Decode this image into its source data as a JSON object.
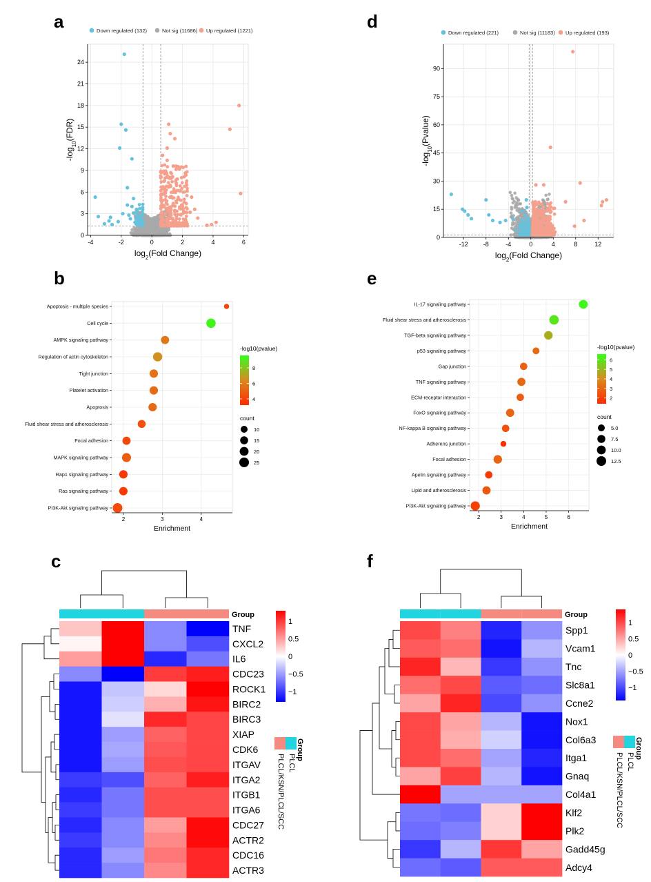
{
  "panels": {
    "a": {
      "letter": "a",
      "chart_data": {
        "type": "scatter",
        "legend": [
          {
            "label": "Down regulated (132)",
            "color": "#66c2dc"
          },
          {
            "label": "Not sig (11686)",
            "color": "#a9a9a9"
          },
          {
            "label": "Up regulated (1221)",
            "color": "#f4a08c"
          }
        ],
        "xlabel": "log2(Fold Change)",
        "ylabel": "-log10(FDR)",
        "xlim": [
          -4.2,
          6.3
        ],
        "ylim": [
          0,
          26.5
        ],
        "xticks": [
          -4,
          -2,
          0,
          2,
          4,
          6
        ],
        "yticks": [
          0,
          3,
          6,
          9,
          12,
          15,
          18,
          21,
          24
        ],
        "vlines": [
          -0.58,
          0.58
        ],
        "hline": 1.3,
        "down_points": [
          [
            -1.8,
            25.1
          ],
          [
            -2.0,
            15.4
          ],
          [
            -1.7,
            14.6
          ],
          [
            -2.1,
            12.1
          ],
          [
            -1.3,
            10.6
          ],
          [
            -3.7,
            5.3
          ],
          [
            -1.2,
            3.1
          ],
          [
            -3.5,
            2.6
          ],
          [
            -2.7,
            2.5
          ],
          [
            -2.8,
            2.0
          ],
          [
            -3.1,
            1.6
          ],
          [
            -2.6,
            1.5
          ],
          [
            -1.6,
            6.6
          ],
          [
            -1.3,
            4.0
          ],
          [
            -1.2,
            5.1
          ],
          [
            -1.0,
            3.6
          ],
          [
            -1.4,
            2.3
          ],
          [
            -0.9,
            2.0
          ],
          [
            -1.5,
            2.8
          ],
          [
            -1.1,
            1.8
          ],
          [
            -0.8,
            2.6
          ],
          [
            -2.2,
            1.9
          ],
          [
            -1.9,
            3.0
          ],
          [
            -0.7,
            1.7
          ],
          [
            -1.0,
            2.4
          ],
          [
            -1.6,
            4.2
          ],
          [
            -0.95,
            3.0
          ],
          [
            -0.75,
            2.2
          ]
        ],
        "up_points": [
          [
            5.7,
            18.0
          ],
          [
            5.1,
            14.7
          ],
          [
            1.1,
            15.4
          ],
          [
            1.2,
            14.1
          ],
          [
            1.5,
            13.4
          ],
          [
            1.0,
            12.1
          ],
          [
            0.7,
            11.1
          ],
          [
            1.0,
            10.4
          ],
          [
            1.4,
            9.6
          ],
          [
            5.8,
            5.8
          ],
          [
            4.2,
            1.8
          ],
          [
            3.9,
            1.5
          ],
          [
            3.6,
            1.4
          ],
          [
            2.3,
            1.6
          ],
          [
            2.0,
            4.1
          ],
          [
            1.8,
            6.2
          ],
          [
            2.5,
            3.2
          ],
          [
            1.6,
            7.2
          ],
          [
            1.3,
            8.0
          ],
          [
            0.9,
            8.9
          ],
          [
            2.2,
            2.2
          ],
          [
            1.9,
            2.9
          ],
          [
            1.7,
            5.0
          ],
          [
            1.1,
            6.7
          ],
          [
            0.8,
            7.5
          ],
          [
            2.8,
            3.6
          ],
          [
            3.0,
            2.4
          ],
          [
            1.4,
            4.4
          ],
          [
            2.6,
            5.3
          ],
          [
            1.5,
            3.3
          ]
        ]
      }
    },
    "b": {
      "letter": "b",
      "chart_data": {
        "type": "scatter",
        "xlabel": "Enrichment",
        "xlim": [
          1.7,
          4.8
        ],
        "xticks": [
          2,
          3,
          4
        ],
        "categories": [
          "Apoptosis - multiple species",
          "Cell cycle",
          "AMPK signaling pathway",
          "Regulation of actin cytoskeleton",
          "Tight junction",
          "Platelet activation",
          "Apoptosis",
          "Fluid shear stress and atherosclerosis",
          "Focal adhesion",
          "MAPK signaling pathway",
          "Rap1 signaling pathway",
          "Ras signaling pathway",
          "PI3K-Akt signaling pathway"
        ],
        "enrichment": [
          4.65,
          4.25,
          3.07,
          2.88,
          2.78,
          2.78,
          2.75,
          2.47,
          2.08,
          2.08,
          2.0,
          2.0,
          1.85
        ],
        "count": [
          4,
          23,
          16,
          22,
          17,
          17,
          17,
          15,
          16,
          21,
          17,
          17,
          25
        ],
        "neg_log10_p": [
          4.2,
          9.3,
          5.8,
          6.6,
          5.6,
          5.4,
          5.3,
          4.5,
          4.2,
          4.9,
          3.6,
          3.7,
          4.3
        ],
        "color_legend_title": "-log10(pvalue)",
        "color_ticks": [
          4,
          6,
          8
        ],
        "color_range": [
          3.2,
          9.6
        ],
        "size_legend_title": "count",
        "size_ticks": [
          10,
          15,
          20,
          25
        ]
      }
    },
    "c": {
      "letter": "c",
      "chart_data": {
        "type": "heatmap",
        "rows": [
          "TNF",
          "CXCL2",
          "IL6",
          "CDC23",
          "ROCK1",
          "BIRC2",
          "BIRC3",
          "XIAP",
          "CDK6",
          "ITGAV",
          "ITGA2",
          "ITGB1",
          "ITGA6",
          "CDC27",
          "ACTR2",
          "CDC16",
          "ACTR3"
        ],
        "values": [
          [
            0.3,
            1.4,
            -0.6,
            -1.3
          ],
          [
            0.05,
            1.5,
            -0.6,
            -0.9
          ],
          [
            0.5,
            1.4,
            -1.1,
            -0.7
          ],
          [
            -0.6,
            -1.4,
            1.0,
            1.15
          ],
          [
            -1.2,
            -0.3,
            0.2,
            1.35
          ],
          [
            -1.2,
            -0.25,
            0.4,
            1.2
          ],
          [
            -1.2,
            -0.15,
            1.1,
            0.95
          ],
          [
            -1.2,
            -0.5,
            0.8,
            0.95
          ],
          [
            -1.2,
            -0.45,
            0.85,
            0.95
          ],
          [
            -1.2,
            -0.5,
            0.9,
            0.95
          ],
          [
            -1.0,
            -0.9,
            0.8,
            1.15
          ],
          [
            -1.1,
            -0.7,
            0.9,
            0.9
          ],
          [
            -1.0,
            -0.7,
            0.9,
            0.9
          ],
          [
            -1.1,
            -0.6,
            0.5,
            1.25
          ],
          [
            -1.0,
            -0.6,
            0.6,
            1.25
          ],
          [
            -1.1,
            -0.5,
            0.7,
            1.1
          ],
          [
            -1.1,
            -0.6,
            0.6,
            1.1
          ]
        ],
        "group_label": "Group",
        "col_groups": [
          "PLCL",
          "PLCL",
          "PLCL/KSN/PLCL/SCC",
          "PLCL/KSN/PLCL/SCC"
        ],
        "legend_ticks": [
          1,
          0.5,
          0,
          -0.5,
          -1
        ],
        "legend_tick_labels": [
          "1",
          "0.5",
          "0",
          "−0.5",
          "−1"
        ],
        "value_range": [
          -1.3,
          1.3
        ],
        "group_legend": {
          "title": "Group",
          "items": [
            {
              "label": "PLCL",
              "color": "#22d3e0"
            },
            {
              "label": "PLCL/KSN/PLCL/SCC",
              "color": "#f48a80"
            }
          ]
        }
      }
    },
    "d": {
      "letter": "d",
      "chart_data": {
        "type": "scatter",
        "legend": [
          {
            "label": "Down regulated (221)",
            "color": "#66c2dc"
          },
          {
            "label": "Not sig (11183)",
            "color": "#a9a9a9"
          },
          {
            "label": "Up regulated (193)",
            "color": "#f4a08c"
          }
        ],
        "xlabel": "log2(Fold Change)",
        "ylabel": "-log10(Pvalue)",
        "xlim": [
          -15.6,
          14.8
        ],
        "ylim": [
          0,
          103
        ],
        "xticks": [
          -12,
          -8,
          -4,
          0,
          4,
          8,
          12
        ],
        "yticks": [
          0,
          15,
          30,
          45,
          60,
          75,
          90
        ],
        "vlines": [
          -0.3,
          0.3
        ],
        "hline": 1.3,
        "down_points": [
          [
            -14.2,
            23
          ],
          [
            -12.2,
            15
          ],
          [
            -11.8,
            14
          ],
          [
            -11.2,
            12
          ],
          [
            -10.6,
            10
          ],
          [
            -8.0,
            20
          ],
          [
            -7.5,
            12
          ],
          [
            -6.8,
            9
          ],
          [
            -5.5,
            8
          ],
          [
            -4.5,
            9
          ],
          [
            -3.2,
            10
          ],
          [
            -2.0,
            7
          ],
          [
            -1.5,
            14
          ],
          [
            -0.8,
            20
          ],
          [
            -1.0,
            12
          ],
          [
            -0.6,
            9
          ],
          [
            -1.8,
            5
          ],
          [
            -1.2,
            7
          ],
          [
            -0.7,
            16
          ],
          [
            -2.6,
            4
          ],
          [
            -0.9,
            5
          ]
        ],
        "up_points": [
          [
            7.5,
            99
          ],
          [
            3.5,
            48
          ],
          [
            2.3,
            28
          ],
          [
            8.8,
            29
          ],
          [
            6.2,
            19
          ],
          [
            12.8,
            19
          ],
          [
            12.6,
            17
          ],
          [
            13.5,
            20
          ],
          [
            9.5,
            9
          ],
          [
            7.8,
            6
          ],
          [
            3.0,
            9
          ],
          [
            1.5,
            7
          ],
          [
            2.8,
            6
          ],
          [
            0.7,
            17
          ],
          [
            0.8,
            19
          ],
          [
            0.9,
            28
          ],
          [
            1.0,
            10
          ],
          [
            0.7,
            5
          ],
          [
            3.9,
            4
          ],
          [
            1.6,
            3
          ],
          [
            0.6,
            13
          ],
          [
            1.2,
            15
          ]
        ]
      }
    },
    "e": {
      "letter": "e",
      "chart_data": {
        "type": "scatter",
        "xlabel": "Enrichment",
        "xlim": [
          1.6,
          6.9
        ],
        "xticks": [
          2,
          3,
          4,
          5,
          6
        ],
        "categories": [
          "IL-17 signaling pathway",
          "Fluid shear stress and atherosclerosis",
          "TGF-beta signaling pathway",
          "p53 signaling pathway",
          "Gap junction",
          "TNF signaling pathway",
          "ECM-receptor interaction",
          "FoxO signaling pathway",
          "NF-kappa B signaling pathway",
          "Adherens junction",
          "Focal adhesion",
          "Apelin signaling pathway",
          "Lipid and atherosclerosis",
          "PI3K-Akt signaling pathway"
        ],
        "enrichment": [
          6.65,
          5.35,
          5.1,
          4.55,
          4.0,
          3.9,
          3.85,
          3.4,
          3.2,
          3.1,
          2.85,
          2.45,
          2.35,
          1.85
        ],
        "count": [
          10,
          12,
          9,
          5,
          6,
          8,
          6,
          8,
          6,
          3,
          9,
          6,
          8,
          11
        ],
        "neg_log10_p": [
          6.4,
          6.0,
          4.8,
          3.2,
          2.9,
          3.1,
          2.8,
          3.0,
          2.4,
          1.6,
          3.0,
          1.8,
          2.6,
          2.0
        ],
        "color_legend_title": "-log10(pvalue)",
        "color_ticks": [
          2,
          3,
          4,
          5,
          6
        ],
        "color_range": [
          1.4,
          6.6
        ],
        "size_legend_title": "count",
        "size_ticks": [
          5.0,
          7.5,
          10.0,
          12.5
        ]
      }
    },
    "f": {
      "letter": "f",
      "chart_data": {
        "type": "heatmap",
        "rows": [
          "Spp1",
          "Vcam1",
          "Tnc",
          "Slc8a1",
          "Ccne2",
          "Nox1",
          "Col6a3",
          "Itga1",
          "Gnaq",
          "Col4a1",
          "Klf2",
          "Plk2",
          "Gadd45g",
          "Adcy4"
        ],
        "values": [
          [
            1.0,
            0.7,
            -1.2,
            -0.6
          ],
          [
            0.9,
            0.8,
            -1.3,
            -0.4
          ],
          [
            1.2,
            0.4,
            -1.1,
            -0.6
          ],
          [
            0.8,
            1.0,
            -0.9,
            -0.8
          ],
          [
            0.5,
            1.2,
            -1.0,
            -0.6
          ],
          [
            1.0,
            0.5,
            -0.4,
            -1.3
          ],
          [
            1.0,
            0.45,
            -0.25,
            -1.3
          ],
          [
            1.0,
            0.8,
            -0.5,
            -1.2
          ],
          [
            0.5,
            1.05,
            -0.4,
            -1.3
          ],
          [
            1.5,
            -0.5,
            -0.5,
            -0.5
          ],
          [
            -0.75,
            -0.8,
            0.25,
            1.4
          ],
          [
            -0.8,
            -0.7,
            0.25,
            1.4
          ],
          [
            -1.1,
            -0.4,
            1.1,
            0.5
          ],
          [
            -0.8,
            -0.9,
            0.9,
            0.9
          ]
        ],
        "group_label": "Group",
        "col_groups": [
          "PLCL",
          "PLCL",
          "PLCL/KSN/PLCL/SCC",
          "PLCL/KSN/PLCL/SCC"
        ],
        "legend_ticks": [
          1,
          0.5,
          0,
          -0.5,
          -1
        ],
        "legend_tick_labels": [
          "1",
          "0.5",
          "0",
          "−0.5",
          "−1"
        ],
        "value_range": [
          -1.4,
          1.4
        ],
        "group_legend": {
          "title": "Group",
          "items": [
            {
              "label": "PLCL",
              "color": "#22d3e0"
            },
            {
              "label": "PLCL/KSN/PLCL/SCC",
              "color": "#f48a80"
            }
          ]
        }
      }
    }
  }
}
